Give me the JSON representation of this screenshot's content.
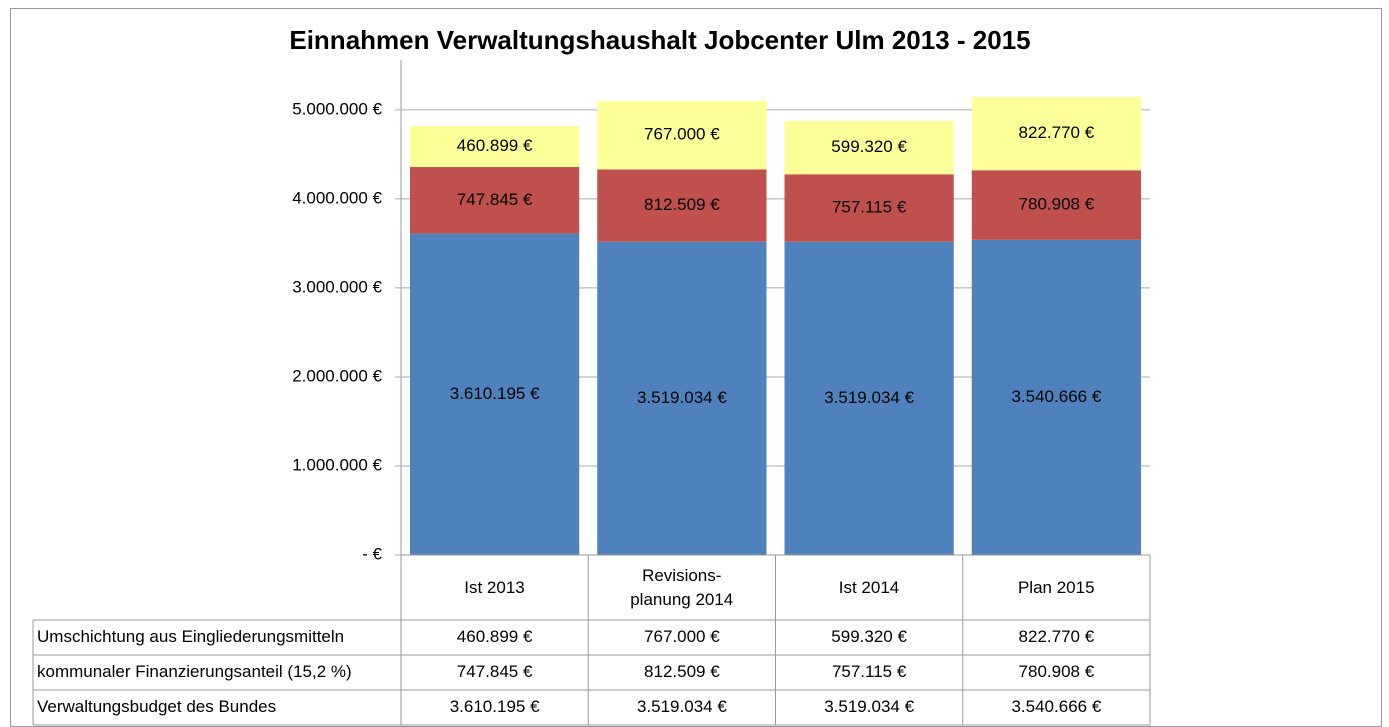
{
  "chart_data": {
    "type": "stacked_bar",
    "title": "Einnahmen  Verwaltungshaushalt Jobcenter Ulm 2013 - 2015",
    "categories": [
      "Ist 2013",
      "Revisions-\nplanung 2014",
      "Ist 2014",
      "Plan 2015"
    ],
    "series": [
      {
        "name": "Verwaltungsbudget des Bundes",
        "color": "#4f81bd",
        "values": [
          3610195,
          3519034,
          3519034,
          3540666
        ],
        "value_labels": [
          "3.610.195 €",
          "3.519.034 €",
          "3.519.034 €",
          "3.540.666 €"
        ]
      },
      {
        "name": "kommunaler Finanzierungsanteil (15,2 %)",
        "color": "#c0504d",
        "values": [
          747845,
          812509,
          757115,
          780908
        ],
        "value_labels": [
          "747.845 €",
          "812.509 €",
          "757.115 €",
          "780.908 €"
        ]
      },
      {
        "name": "Umschichtung aus Eingliederungsmitteln",
        "color": "#ffff99",
        "values": [
          460899,
          767000,
          599320,
          822770
        ],
        "value_labels": [
          "460.899 €",
          "767.000 €",
          "599.320 €",
          "822.770 €"
        ]
      }
    ],
    "ylim": [
      0,
      5560000
    ],
    "yticks": [
      {
        "value": 0,
        "label": "-  €"
      },
      {
        "value": 1000000,
        "label": "1.000.000 €"
      },
      {
        "value": 2000000,
        "label": "2.000.000 €"
      },
      {
        "value": 3000000,
        "label": "3.000.000 €"
      },
      {
        "value": 4000000,
        "label": "4.000.000 €"
      },
      {
        "value": 5000000,
        "label": "5.000.000 €"
      }
    ],
    "grid": true
  }
}
